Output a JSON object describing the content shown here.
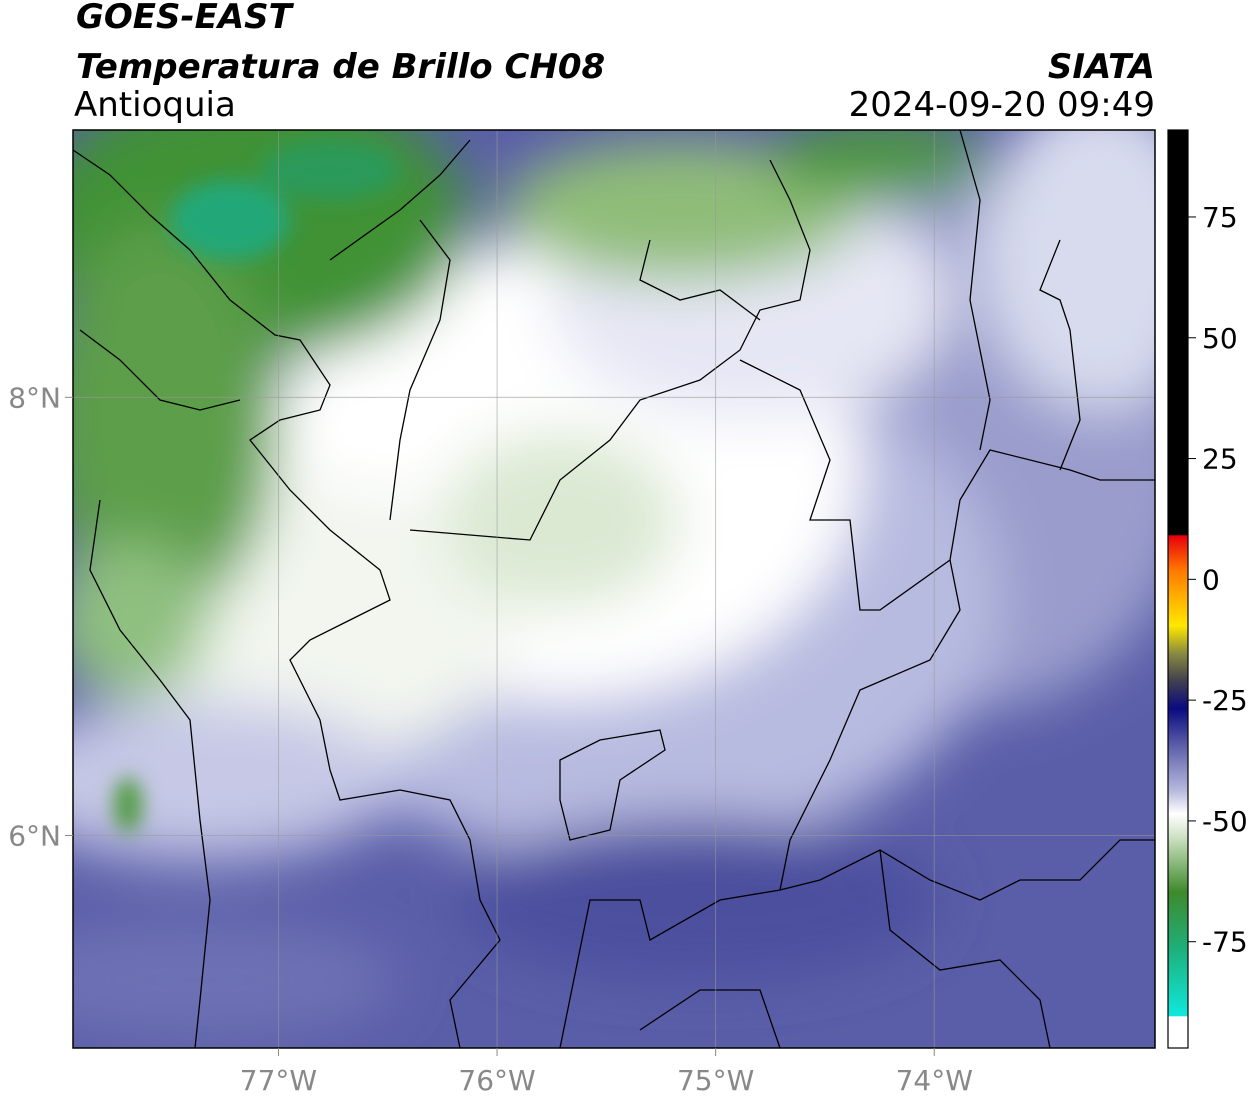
{
  "header": {
    "title": "GOES-EAST",
    "subtitle": "Temperatura de Brillo CH08",
    "region": "Antioquia",
    "source": "SIATA",
    "datetime": "2024-09-20 09:49"
  },
  "map": {
    "xlim": [
      -77.94,
      -72.99
    ],
    "ylim": [
      5.03,
      9.22
    ],
    "xticks": [
      {
        "value": -77,
        "label": "77°W"
      },
      {
        "value": -76,
        "label": "76°W"
      },
      {
        "value": -75,
        "label": "75°W"
      },
      {
        "value": -74,
        "label": "74°W"
      }
    ],
    "yticks": [
      {
        "value": 6,
        "label": "6°N"
      },
      {
        "value": 8,
        "label": "8°N"
      }
    ],
    "grid": true
  },
  "colorbar": {
    "lim": [
      -97,
      93
    ],
    "ticks": [
      -75,
      -50,
      -25,
      0,
      25,
      50,
      75
    ]
  }
}
